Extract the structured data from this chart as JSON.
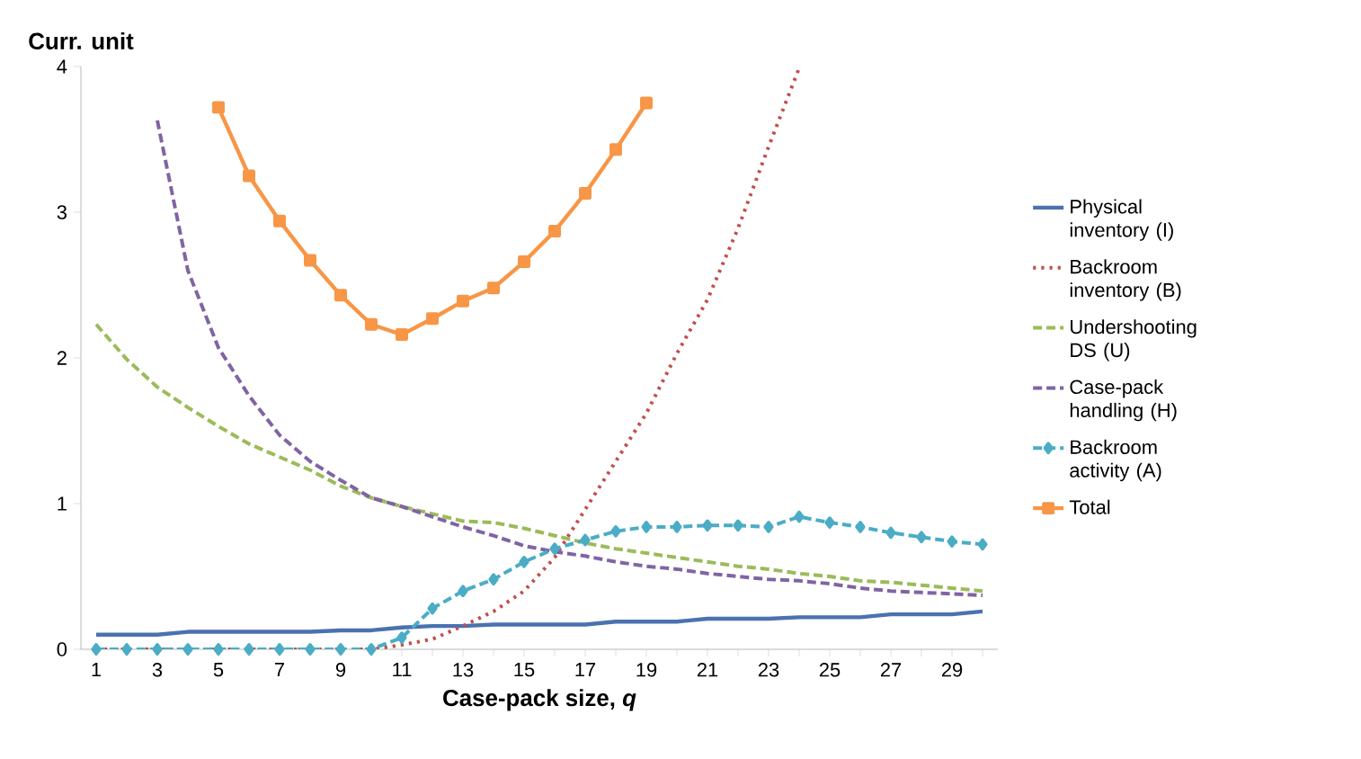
{
  "chart_data": {
    "type": "line",
    "ylabel": "Curr. unit",
    "xlabel": "Case-pack size, *q*",
    "categories": [
      "1",
      null,
      "3",
      null,
      "5",
      null,
      "7",
      null,
      "9",
      null,
      "11",
      null,
      "13",
      null,
      "15",
      null,
      "17",
      null,
      "19",
      null,
      "21",
      null,
      "23",
      null,
      "25",
      null,
      "27",
      null,
      "29",
      null
    ],
    "ylim": [
      0,
      4
    ],
    "yticks": [
      0,
      1,
      2,
      3,
      4
    ],
    "grid": false,
    "legend": "right",
    "series": [
      {
        "name": "Physical inventory (I)",
        "color": "#4a72b0",
        "line_style": "solid",
        "marker": "none",
        "values": [
          0.1,
          0.1,
          0.1,
          0.12,
          0.12,
          0.12,
          0.12,
          0.12,
          0.13,
          0.13,
          0.15,
          0.16,
          0.16,
          0.17,
          0.17,
          0.17,
          0.17,
          0.19,
          0.19,
          0.19,
          0.21,
          0.21,
          0.21,
          0.22,
          0.22,
          0.22,
          0.24,
          0.24,
          0.24,
          0.26
        ]
      },
      {
        "name": "Backroom inventory (B)",
        "color": "#c0504d",
        "line_style": "dotted",
        "marker": "none",
        "values": [
          0,
          0,
          0,
          0,
          0,
          0,
          0,
          0,
          0,
          0,
          0.03,
          0.07,
          0.16,
          0.26,
          0.4,
          0.63,
          0.96,
          1.29,
          1.62,
          2.03,
          2.4,
          2.89,
          3.45,
          3.99,
          null,
          null,
          null,
          null,
          null,
          null
        ]
      },
      {
        "name": "Undershooting DS (U)",
        "color": "#9bbb59",
        "line_style": "dashed",
        "marker": "none",
        "values": [
          2.23,
          1.99,
          1.8,
          1.66,
          1.53,
          1.41,
          1.32,
          1.23,
          1.12,
          1.04,
          0.98,
          0.93,
          0.88,
          0.87,
          0.83,
          0.78,
          0.73,
          0.69,
          0.66,
          0.63,
          0.6,
          0.57,
          0.55,
          0.52,
          0.5,
          0.47,
          0.46,
          0.44,
          0.42,
          0.4
        ]
      },
      {
        "name": "Case-pack handling (H)",
        "color": "#8064a2",
        "line_style": "dashed",
        "marker": "none",
        "values": [
          null,
          null,
          3.63,
          2.6,
          2.07,
          1.74,
          1.47,
          1.29,
          1.16,
          1.04,
          0.98,
          0.91,
          0.84,
          0.78,
          0.71,
          0.67,
          0.64,
          0.6,
          0.57,
          0.55,
          0.52,
          0.5,
          0.48,
          0.47,
          0.45,
          0.42,
          0.4,
          0.39,
          0.38,
          0.37
        ]
      },
      {
        "name": "Backroom activity (A)",
        "color": "#4bacc6",
        "line_style": "dashed",
        "marker": "diamond",
        "values": [
          0,
          0,
          0,
          0,
          0,
          0,
          0,
          0,
          0,
          0,
          0.08,
          0.28,
          0.4,
          0.48,
          0.6,
          0.69,
          0.75,
          0.81,
          0.84,
          0.84,
          0.85,
          0.85,
          0.84,
          0.91,
          0.87,
          0.84,
          0.8,
          0.77,
          0.74,
          0.72
        ]
      },
      {
        "name": "Total",
        "color": "#f79646",
        "line_style": "solid",
        "marker": "square",
        "values": [
          null,
          null,
          null,
          null,
          3.72,
          3.25,
          2.94,
          2.67,
          2.43,
          2.23,
          2.16,
          2.27,
          2.39,
          2.48,
          2.66,
          2.87,
          3.13,
          3.43,
          3.75,
          null,
          null,
          null,
          null,
          null,
          null,
          null,
          null,
          null,
          null,
          null
        ]
      }
    ]
  }
}
